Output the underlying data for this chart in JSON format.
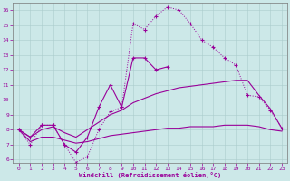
{
  "xlabel": "Windchill (Refroidissement éolien,°C)",
  "bg_color": "#cce8e8",
  "line_color": "#990099",
  "xlim": [
    -0.5,
    23.5
  ],
  "ylim": [
    5.8,
    16.5
  ],
  "yticks": [
    6,
    7,
    8,
    9,
    10,
    11,
    12,
    13,
    14,
    15,
    16
  ],
  "xticks": [
    0,
    1,
    2,
    3,
    4,
    5,
    6,
    7,
    8,
    9,
    10,
    11,
    12,
    13,
    14,
    15,
    16,
    17,
    18,
    19,
    20,
    21,
    22,
    23
  ],
  "line1_dotted_plus": {
    "x": [
      0,
      1,
      2,
      3,
      4,
      5,
      6,
      7,
      8,
      9,
      10,
      11,
      12,
      13,
      14,
      15,
      16,
      17,
      18,
      19,
      20,
      21,
      22,
      23
    ],
    "y": [
      8.0,
      7.0,
      8.3,
      8.3,
      7.0,
      5.8,
      6.2,
      8.0,
      9.2,
      9.5,
      15.1,
      14.7,
      15.6,
      16.2,
      16.0,
      15.1,
      14.0,
      13.5,
      12.8,
      12.3,
      10.3,
      10.2,
      9.3,
      8.1
    ]
  },
  "line2_solid_plus": {
    "x": [
      0,
      1,
      2,
      3,
      4,
      5,
      6,
      7,
      8,
      9,
      10,
      11,
      12,
      13
    ],
    "y": [
      8.0,
      7.5,
      8.3,
      8.3,
      7.0,
      6.5,
      7.5,
      9.5,
      11.0,
      9.5,
      12.8,
      12.8,
      12.0,
      12.2
    ]
  },
  "line3_solid": {
    "x": [
      0,
      1,
      2,
      3,
      4,
      5,
      6,
      7,
      8,
      9,
      10,
      11,
      12,
      13,
      14,
      15,
      16,
      17,
      18,
      19,
      20,
      21,
      22,
      23
    ],
    "y": [
      8.0,
      7.5,
      8.0,
      8.2,
      7.8,
      7.5,
      8.0,
      8.5,
      9.0,
      9.3,
      9.8,
      10.1,
      10.4,
      10.6,
      10.8,
      10.9,
      11.0,
      11.1,
      11.2,
      11.3,
      11.3,
      10.3,
      9.4,
      8.1
    ]
  },
  "line4_solid_flat": {
    "x": [
      0,
      1,
      2,
      3,
      4,
      5,
      6,
      7,
      8,
      9,
      10,
      11,
      12,
      13,
      14,
      15,
      16,
      17,
      18,
      19,
      20,
      21,
      22,
      23
    ],
    "y": [
      8.0,
      7.2,
      7.5,
      7.5,
      7.3,
      7.1,
      7.2,
      7.4,
      7.6,
      7.7,
      7.8,
      7.9,
      8.0,
      8.1,
      8.1,
      8.2,
      8.2,
      8.2,
      8.3,
      8.3,
      8.3,
      8.2,
      8.0,
      7.9
    ]
  }
}
